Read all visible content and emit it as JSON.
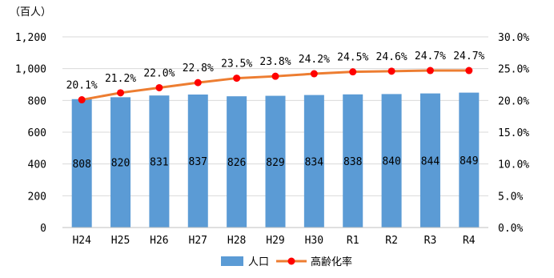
{
  "chart_data": {
    "type": "bar",
    "categories": [
      "H24",
      "H25",
      "H26",
      "H27",
      "H28",
      "H29",
      "H30",
      "R1",
      "R2",
      "R3",
      "R4"
    ],
    "unit_label": "（百人）",
    "series": [
      {
        "name": "人口",
        "type": "bar",
        "axis": "left",
        "color": "#5B9BD5",
        "values": [
          808,
          820,
          831,
          837,
          826,
          829,
          834,
          838,
          840,
          844,
          849
        ],
        "labels": [
          "808",
          "820",
          "831",
          "837",
          "826",
          "829",
          "834",
          "838",
          "840",
          "844",
          "849"
        ]
      },
      {
        "name": "高齢化率",
        "type": "line",
        "axis": "right",
        "color": "#ED7D31",
        "marker_color": "#FF0000",
        "values": [
          20.1,
          21.2,
          22.0,
          22.8,
          23.5,
          23.8,
          24.2,
          24.5,
          24.6,
          24.7,
          24.7
        ],
        "labels": [
          "20.1%",
          "21.2%",
          "22.0%",
          "22.8%",
          "23.5%",
          "23.8%",
          "24.2%",
          "24.5%",
          "24.6%",
          "24.7%",
          "24.7%"
        ]
      }
    ],
    "y_left": {
      "range": [
        0,
        1200
      ],
      "ticks": [
        0,
        200,
        400,
        600,
        800,
        1000,
        1200
      ],
      "tick_labels": [
        "0",
        "200",
        "400",
        "600",
        "800",
        "1,000",
        "1,200"
      ]
    },
    "y_right": {
      "range": [
        0,
        30
      ],
      "ticks": [
        0,
        5,
        10,
        15,
        20,
        25,
        30
      ],
      "tick_labels": [
        "0.0%",
        "5.0%",
        "10.0%",
        "15.0%",
        "20.0%",
        "25.0%",
        "30.0%"
      ]
    },
    "grid": true,
    "legend_position": "bottom"
  }
}
